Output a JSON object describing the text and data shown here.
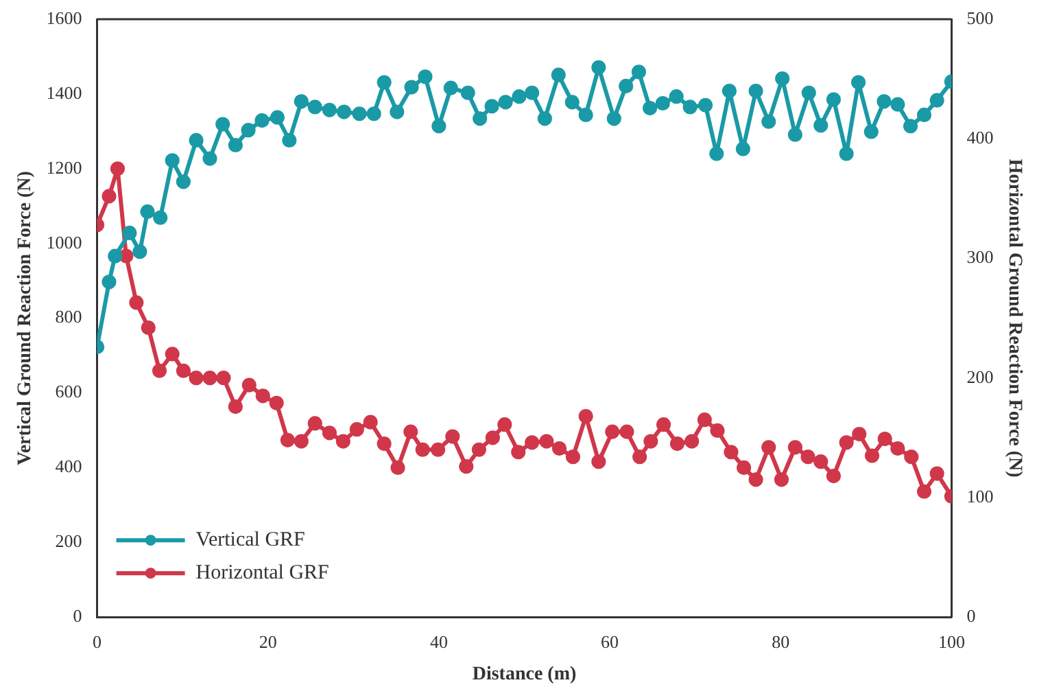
{
  "chart_data": {
    "type": "line",
    "xlabel": "Distance (m)",
    "ylabel": "Vertical Ground Reaction Force (N)",
    "y2label": "Horizontal Ground Reaction Force (N)",
    "xlim": [
      0,
      100
    ],
    "xticks": [
      0,
      20,
      40,
      60,
      80,
      100
    ],
    "ylim": [
      0,
      1600
    ],
    "yticks": [
      0,
      200,
      400,
      600,
      800,
      1000,
      1200,
      1400,
      1600
    ],
    "y2lim": [
      0,
      500
    ],
    "y2ticks": [
      0,
      100,
      200,
      300,
      400,
      500
    ],
    "grid": false,
    "legend": "bottom left",
    "marker": "circle",
    "line_style": "solid",
    "series": [
      {
        "name": "Vertical GRF",
        "color": "#1a9aa6",
        "x": [
          0,
          1.4,
          2.1,
          3.8,
          5.0,
          5.9,
          7.4,
          8.8,
          10.1,
          11.6,
          13.2,
          14.7,
          16.2,
          17.7,
          19.3,
          21.1,
          22.5,
          23.9,
          25.5,
          27.2,
          28.9,
          30.7,
          32.4,
          33.6,
          35.1,
          36.8,
          38.4,
          40.0,
          41.4,
          43.4,
          44.8,
          46.2,
          47.8,
          49.4,
          50.9,
          52.4,
          54.0,
          55.6,
          57.2,
          58.7,
          60.5,
          61.9,
          63.4,
          64.7,
          66.2,
          67.8,
          69.4,
          71.2,
          72.5,
          74.0,
          75.6,
          77.1,
          78.6,
          80.2,
          81.7,
          83.3,
          84.7,
          86.2,
          87.7,
          89.1,
          90.6,
          92.1,
          93.7,
          95.2,
          96.8,
          98.3,
          100
        ],
        "values": [
          723,
          897,
          966,
          1028,
          978,
          1085,
          1069,
          1222,
          1165,
          1276,
          1227,
          1319,
          1263,
          1303,
          1329,
          1337,
          1276,
          1380,
          1365,
          1357,
          1352,
          1347,
          1347,
          1431,
          1352,
          1418,
          1446,
          1314,
          1416,
          1403,
          1334,
          1367,
          1378,
          1393,
          1403,
          1334,
          1451,
          1378,
          1344,
          1471,
          1334,
          1421,
          1459,
          1362,
          1375,
          1393,
          1365,
          1370,
          1240,
          1408,
          1253,
          1408,
          1326,
          1441,
          1291,
          1403,
          1316,
          1385,
          1240,
          1431,
          1299,
          1380,
          1372,
          1314,
          1344,
          1383,
          1433
        ]
      },
      {
        "name": "Horizontal GRF",
        "color": "#d0374a",
        "axis": "y2",
        "x": [
          0,
          1.4,
          2.4,
          3.4,
          4.6,
          6.0,
          7.3,
          8.8,
          10.1,
          11.6,
          13.2,
          14.8,
          16.2,
          17.8,
          19.4,
          21.0,
          22.3,
          23.9,
          25.5,
          27.2,
          28.8,
          30.4,
          32.0,
          33.6,
          35.2,
          36.7,
          38.1,
          39.9,
          41.6,
          43.2,
          44.7,
          46.3,
          47.7,
          49.3,
          50.9,
          52.6,
          54.1,
          55.7,
          57.2,
          58.7,
          60.3,
          62.0,
          63.5,
          64.8,
          66.3,
          67.9,
          69.6,
          71.1,
          72.6,
          74.2,
          75.7,
          77.1,
          78.6,
          80.1,
          81.7,
          83.2,
          84.7,
          86.2,
          87.7,
          89.2,
          90.7,
          92.2,
          93.7,
          95.3,
          96.8,
          98.3,
          100
        ],
        "values": [
          328,
          352,
          375,
          302,
          263,
          242,
          206,
          220,
          206,
          200,
          200,
          200,
          176,
          194,
          185,
          179,
          148,
          147,
          162,
          154,
          147,
          157,
          163,
          145,
          125,
          155,
          140,
          140,
          151,
          126,
          140,
          150,
          161,
          138,
          146,
          147,
          141,
          134,
          168,
          130,
          155,
          155,
          134,
          147,
          161,
          145,
          147,
          165,
          156,
          138,
          125,
          115,
          142,
          115,
          142,
          134,
          130,
          118,
          146,
          153,
          135,
          149,
          141,
          134,
          105,
          120,
          101
        ]
      }
    ]
  }
}
